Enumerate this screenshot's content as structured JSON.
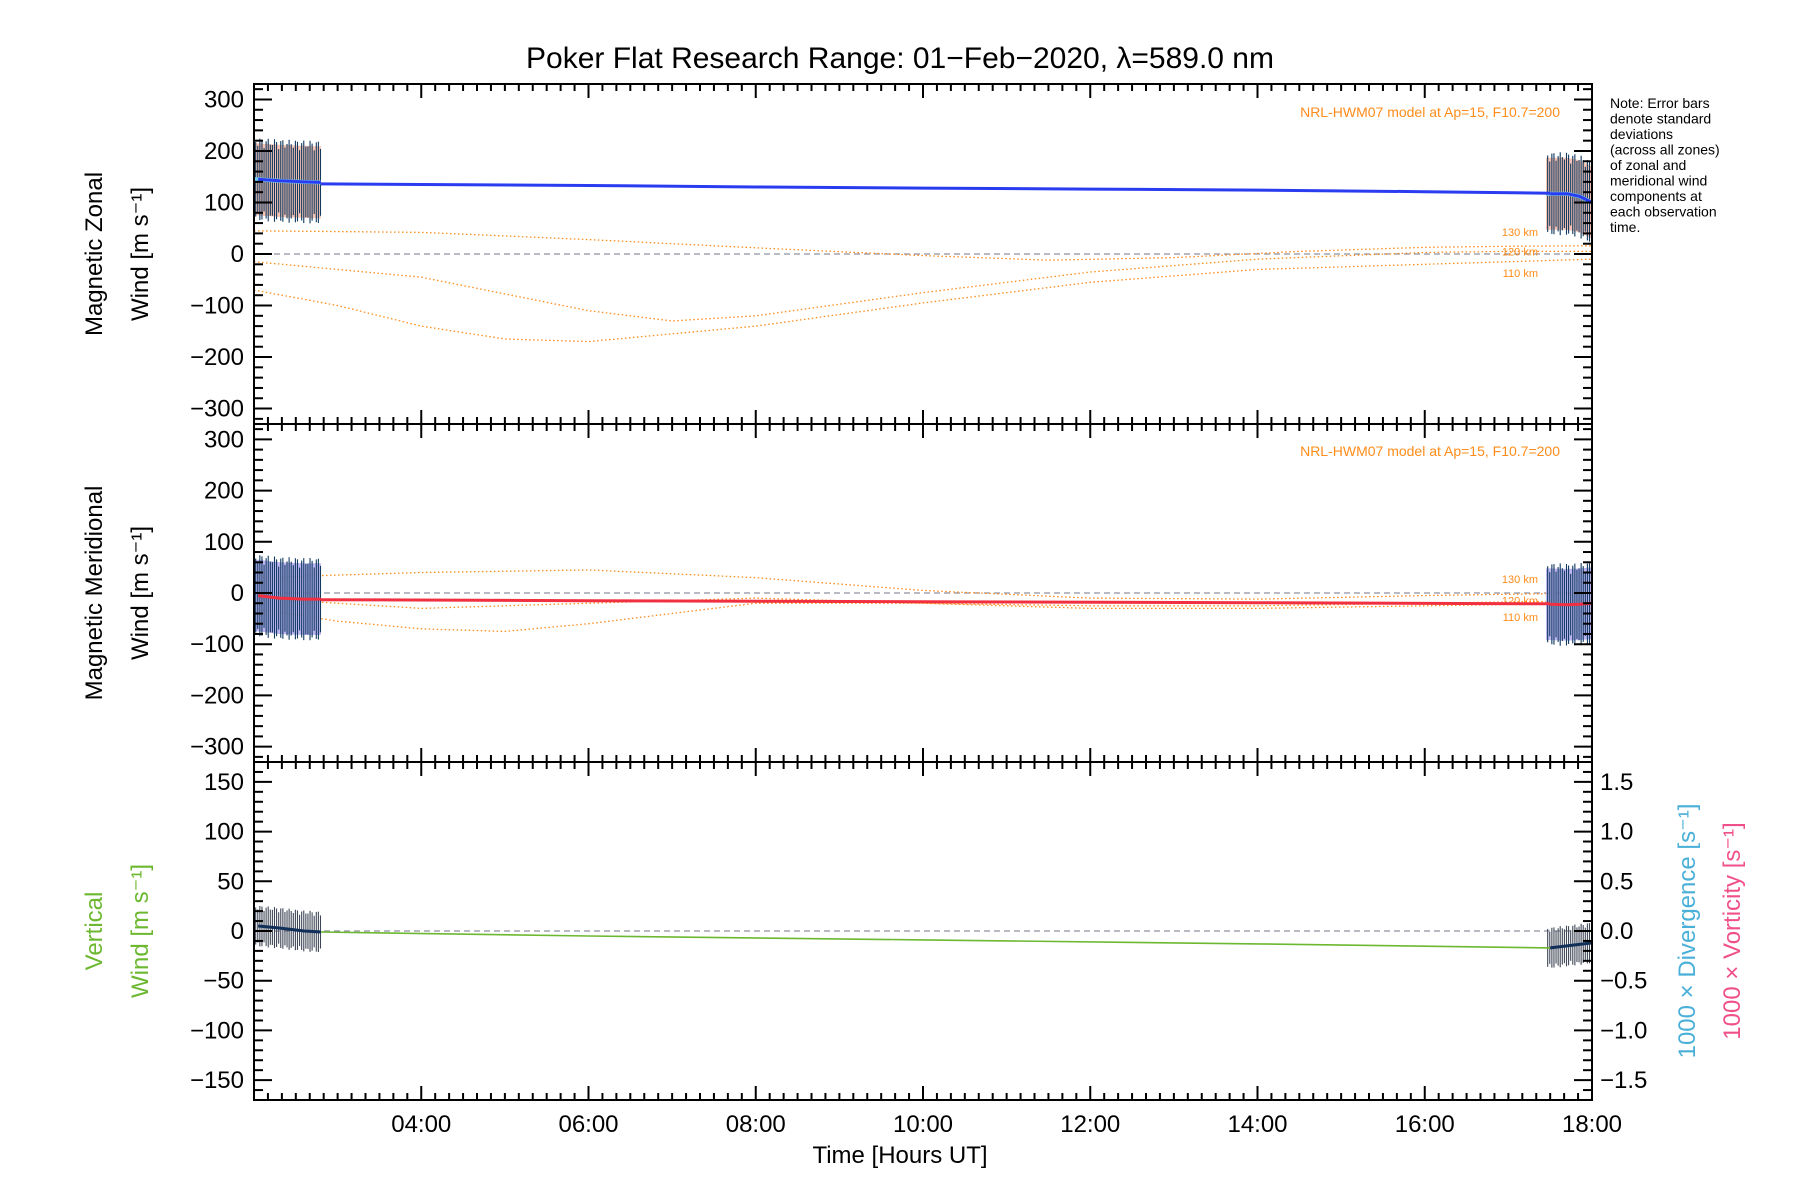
{
  "title": "Poker Flat Research Range: 01−Feb−2020, λ=589.0 nm",
  "note_lines": [
    "Note: Error bars",
    "denote standard",
    "deviations",
    "(across all zones)",
    "of zonal and",
    "meridional wind",
    "components at",
    "each observation",
    "time."
  ],
  "model_label": "NRL-HWM07 model at Ap=15, F10.7=200",
  "colors": {
    "zonal": "#2a3cf0",
    "zonal_band": "#f5b8a6",
    "zonal_zone": "#6ec8f0",
    "meridional": "#f03040",
    "meridional_band": "#b0a8f0",
    "vertical": "#6cb830",
    "vertical_obs": "#10305a",
    "errorbar": "#103a60",
    "model": "#ff8c1a",
    "zero_line": "#9090a0",
    "divergence": "#4ab0d8",
    "vorticity": "#f0508a"
  },
  "chart_data": [
    {
      "type": "line",
      "name": "zonal",
      "ylabel_line1": "Magnetic Zonal",
      "ylabel_line2": "Wind [m s⁻¹]",
      "ylim": [
        -330,
        330
      ],
      "yticks": [
        300,
        200,
        100,
        0,
        -100,
        -200,
        -300
      ],
      "ytick_labels": [
        "300",
        "200",
        "100",
        "0",
        "−100",
        "−200",
        "−300"
      ],
      "xlim": [
        2.0,
        18.0
      ],
      "model_altitudes": [
        "130 km",
        "120 km",
        "110 km"
      ],
      "series": [
        {
          "name": "observed",
          "x": [
            2.05,
            2.3,
            2.6,
            2.8,
            17.5,
            17.7,
            17.85,
            18.0
          ],
          "y": [
            145,
            142,
            140,
            139,
            117,
            117,
            112,
            100
          ]
        },
        {
          "name": "interpolated",
          "x": [
            2.8,
            4,
            6,
            8,
            10,
            12,
            14,
            16,
            17.5
          ],
          "y": [
            136,
            135,
            133,
            130,
            128,
            126,
            124,
            121,
            118
          ]
        },
        {
          "model": "130 km",
          "x": [
            2,
            4,
            6,
            8,
            10,
            11.5,
            13,
            14.5,
            16,
            17,
            18
          ],
          "y": [
            45,
            42,
            28,
            12,
            -3,
            -12,
            -7,
            5,
            13,
            15,
            16
          ]
        },
        {
          "model": "120 km",
          "x": [
            2,
            4,
            6,
            7,
            8,
            10,
            12,
            14,
            16,
            17,
            18
          ],
          "y": [
            -15,
            -45,
            -110,
            -130,
            -120,
            -75,
            -35,
            -10,
            3,
            5,
            5
          ]
        },
        {
          "model": "110 km",
          "x": [
            2,
            3,
            4,
            5,
            6,
            8,
            10,
            12,
            14,
            16,
            17,
            18
          ],
          "y": [
            -70,
            -100,
            -140,
            -165,
            -170,
            -140,
            -95,
            -55,
            -30,
            -20,
            -15,
            -10
          ]
        }
      ]
    },
    {
      "type": "line",
      "name": "meridional",
      "ylabel_line1": "Magnetic Meridional",
      "ylabel_line2": "Wind [m s⁻¹]",
      "ylim": [
        -330,
        330
      ],
      "yticks": [
        300,
        200,
        100,
        0,
        -100,
        -200,
        -300
      ],
      "ytick_labels": [
        "300",
        "200",
        "100",
        "0",
        "−100",
        "−200",
        "−300"
      ],
      "xlim": [
        2.0,
        18.0
      ],
      "model_altitudes": [
        "130 km",
        "120 km",
        "110 km"
      ],
      "series": [
        {
          "name": "observed",
          "x": [
            2.05,
            2.3,
            2.6,
            2.8,
            17.5,
            17.7,
            17.85,
            18.0
          ],
          "y": [
            -5,
            -10,
            -12,
            -12,
            -22,
            -23,
            -22,
            -20
          ]
        },
        {
          "name": "interpolated",
          "x": [
            2.8,
            6,
            10,
            14,
            17.5
          ],
          "y": [
            -13,
            -15,
            -17,
            -19,
            -21
          ]
        },
        {
          "model": "130 km",
          "x": [
            2,
            4,
            6,
            8,
            10,
            12,
            14,
            16,
            18
          ],
          "y": [
            30,
            40,
            45,
            30,
            5,
            -10,
            -12,
            -5,
            0
          ]
        },
        {
          "model": "120 km",
          "x": [
            2,
            4,
            6,
            8,
            10,
            12,
            14,
            16,
            18
          ],
          "y": [
            -10,
            -30,
            -20,
            -10,
            -20,
            -25,
            -25,
            -20,
            -15
          ]
        },
        {
          "model": "110 km",
          "x": [
            2,
            3,
            4,
            5,
            6,
            8,
            10,
            12,
            14,
            16,
            18
          ],
          "y": [
            -30,
            -55,
            -70,
            -75,
            -60,
            -20,
            -20,
            -30,
            -30,
            -25,
            -20
          ]
        }
      ]
    },
    {
      "type": "line",
      "name": "vertical",
      "ylabel_line1": "Vertical",
      "ylabel_line2": "Wind [m s⁻¹]",
      "ylim": [
        -170,
        170
      ],
      "yticks": [
        150,
        100,
        50,
        0,
        -50,
        -100,
        -150
      ],
      "ytick_labels": [
        "150",
        "100",
        "50",
        "0",
        "−50",
        "−100",
        "−150"
      ],
      "y2lim": [
        -1.7,
        1.7
      ],
      "y2ticks": [
        1.5,
        1.0,
        0.5,
        0.0,
        -0.5,
        -1.0,
        -1.5
      ],
      "y2tick_labels": [
        "1.5",
        "1.0",
        "0.5",
        "0.0",
        "−0.5",
        "−1.0",
        "−1.5"
      ],
      "y2label_divergence": "1000 × Divergence [s⁻¹]",
      "y2label_vorticity": "1000 × Vorticity [s⁻¹]",
      "xlim": [
        2.0,
        18.0
      ],
      "xticks": [
        4,
        6,
        8,
        10,
        12,
        14,
        16,
        18
      ],
      "xtick_labels": [
        "04:00",
        "06:00",
        "08:00",
        "10:00",
        "12:00",
        "14:00",
        "16:00",
        "18:00"
      ],
      "xlabel": "Time [Hours UT]",
      "series": [
        {
          "name": "observed",
          "x": [
            2.05,
            2.3,
            2.6,
            2.8,
            17.5,
            17.7,
            17.9,
            18.0
          ],
          "y": [
            5,
            3,
            0,
            -1,
            -17,
            -15,
            -13,
            -12
          ]
        },
        {
          "name": "interpolated",
          "x": [
            2.8,
            6,
            10,
            14,
            17.5
          ],
          "y": [
            -1,
            -5,
            -9,
            -13,
            -17
          ]
        }
      ]
    }
  ]
}
